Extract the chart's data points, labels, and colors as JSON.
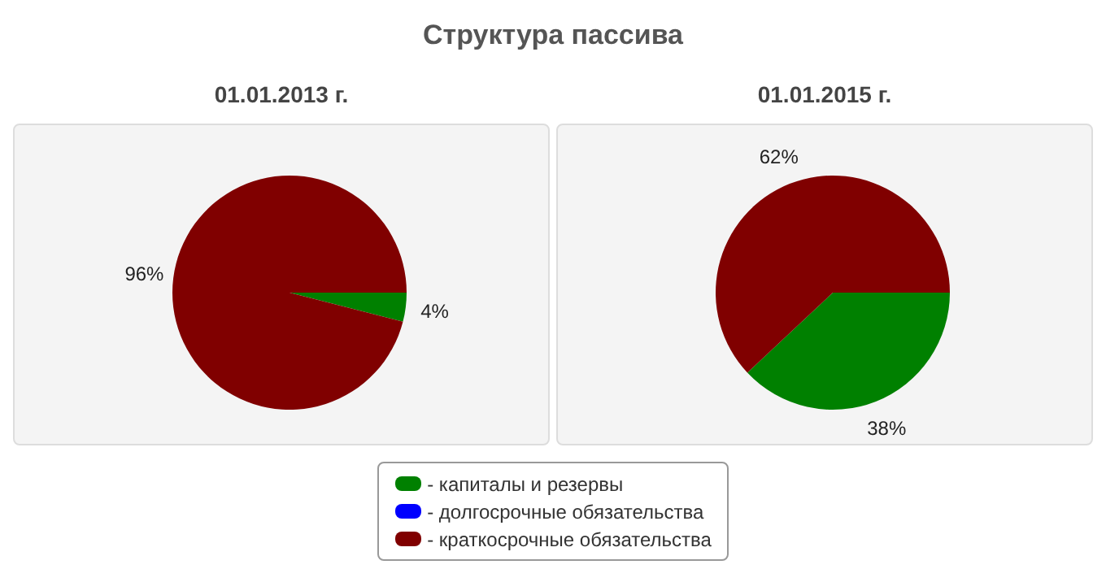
{
  "chart_data": [
    {
      "type": "pie",
      "title": "Структура пассива",
      "subtitle": "01.01.2013 г.",
      "categories": [
        "- капиталы и резервы",
        "- долгосрочные обязательства",
        "- краткосрочные обязательства"
      ],
      "values": [
        4,
        0,
        96
      ],
      "colors": [
        "#008000",
        "#0000ff",
        "#800000"
      ],
      "value_labels": [
        "4%",
        null,
        "96%"
      ],
      "legend": "bottom"
    },
    {
      "type": "pie",
      "subtitle": "01.01.2015 г.",
      "categories": [
        null,
        null,
        null
      ],
      "values": [
        38,
        0,
        62
      ],
      "colors": [
        "#008000",
        "#0000ff",
        "#800000"
      ],
      "value_labels": [
        "38%",
        null,
        "62%"
      ]
    }
  ]
}
